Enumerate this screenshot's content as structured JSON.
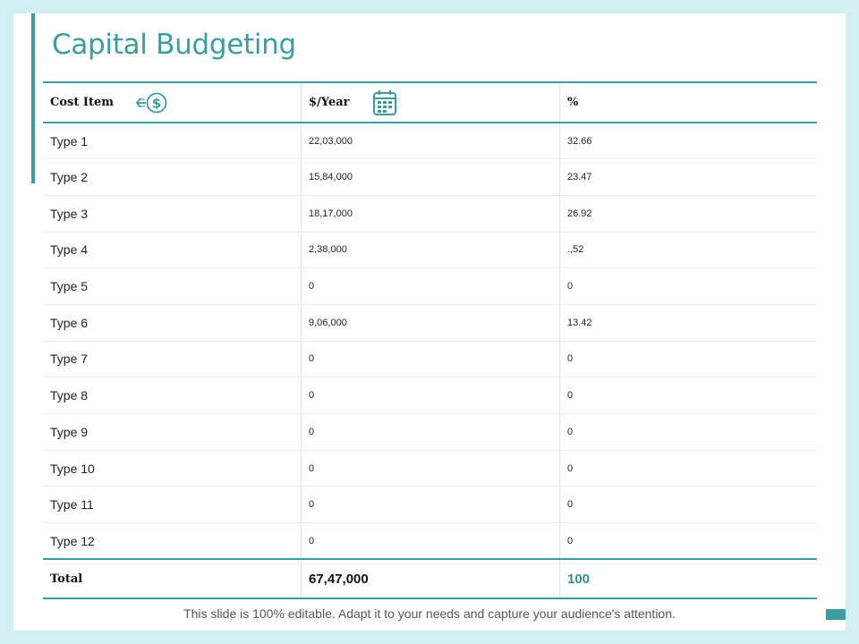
{
  "title": "Capital Budgeting",
  "table": {
    "headers": {
      "cost_item": "Cost Item",
      "per_year": "$/Year",
      "percent": "%",
      "cost_icon": "dollar-arrow-icon",
      "year_icon": "calendar-icon"
    },
    "rows": [
      {
        "name": "Type 1",
        "amount": "22,03,000",
        "percent": "32.66"
      },
      {
        "name": "Type 2",
        "amount": "15,84,000",
        "percent": "23.47"
      },
      {
        "name": "Type 3",
        "amount": "18,17,000",
        "percent": "26.92"
      },
      {
        "name": "Type 4",
        "amount": "2,38,000",
        "percent": ".,52"
      },
      {
        "name": "Type 5",
        "amount": "0",
        "percent": "0"
      },
      {
        "name": "Type 6",
        "amount": "9,06,000",
        "percent": "13.42"
      },
      {
        "name": "Type 7",
        "amount": "0",
        "percent": "0"
      },
      {
        "name": "Type 8",
        "amount": "0",
        "percent": "0"
      },
      {
        "name": "Type 9",
        "amount": "0",
        "percent": "0"
      },
      {
        "name": "Type 10",
        "amount": "0",
        "percent": "0"
      },
      {
        "name": "Type 11",
        "amount": "0",
        "percent": "0"
      },
      {
        "name": "Type 12",
        "amount": "0",
        "percent": "0"
      }
    ],
    "total": {
      "label": "Total",
      "amount": "67,47,000",
      "percent": "100"
    }
  },
  "footer_note": "This slide is 100% editable. Adapt it to your needs and capture your audience's attention.",
  "colors": {
    "accent": "#3a9ea0",
    "background": "#d3eff1"
  }
}
